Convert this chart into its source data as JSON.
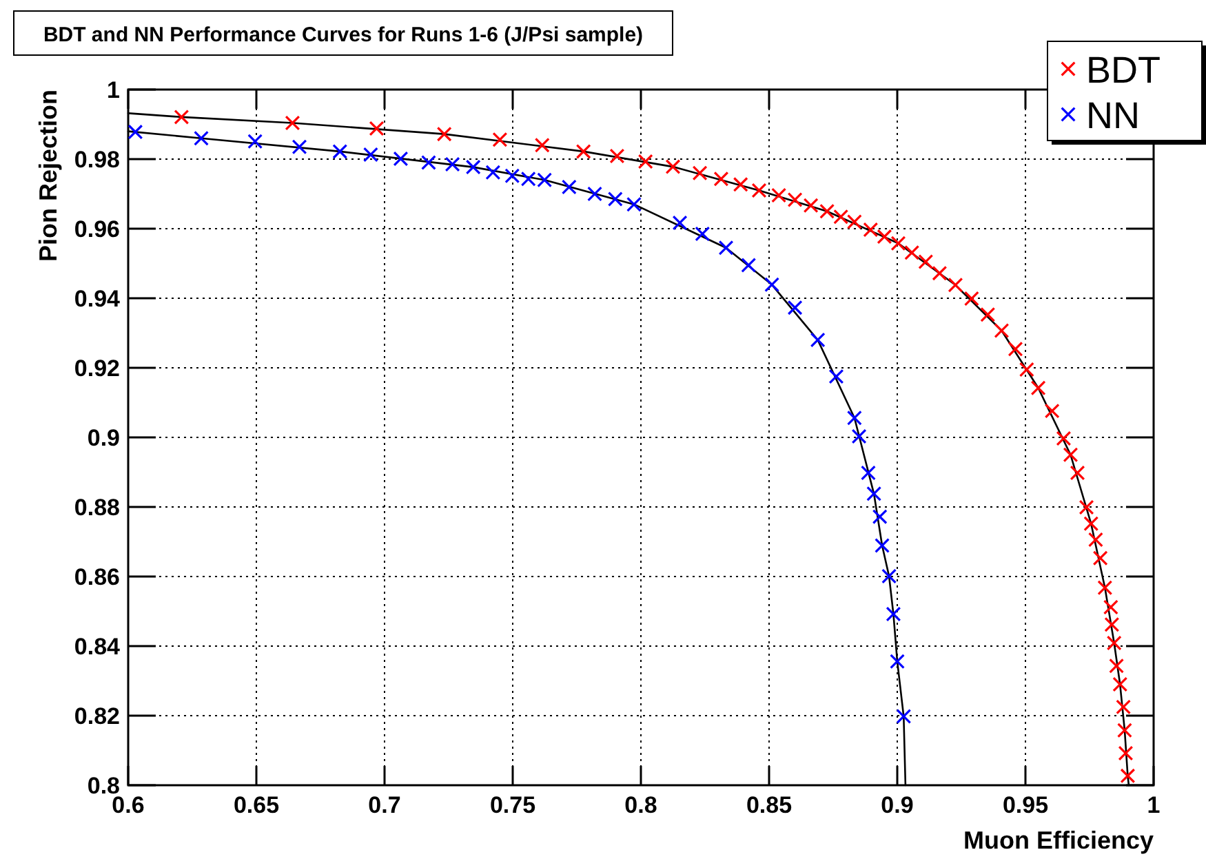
{
  "chart_data": {
    "type": "scatter",
    "title": "BDT and NN Performance Curves for Runs 1-6 (J/Psi sample)",
    "xlabel": "Muon Efficiency",
    "ylabel": "Pion Rejection",
    "xlim": [
      0.6,
      1
    ],
    "xticks": [
      0.6,
      0.65,
      0.7,
      0.75,
      0.8,
      0.85,
      0.9,
      0.95,
      1
    ],
    "ylim": [
      0.8,
      1
    ],
    "yticks": [
      0.8,
      0.82,
      0.84,
      0.86,
      0.88,
      0.9,
      0.92,
      0.94,
      0.96,
      0.98,
      1
    ],
    "grid": true,
    "legend": "top right",
    "marker": "cross",
    "series": [
      {
        "type": "line",
        "marker": "none",
        "color": "#000000",
        "x": [
          0.6,
          0.6208,
          0.6641,
          0.7233,
          0.7776,
          0.8125,
          0.8461,
          0.8726,
          0.9004,
          0.9227,
          0.9407,
          0.955,
          0.9676,
          0.9756,
          0.981,
          0.9846,
          0.9869,
          0.9887,
          0.9899,
          0.9903
        ],
        "values": [
          0.9932,
          0.9921,
          0.9904,
          0.9872,
          0.9822,
          0.9778,
          0.971,
          0.965,
          0.9558,
          0.9438,
          0.9307,
          0.9142,
          0.895,
          0.8752,
          0.8568,
          0.8409,
          0.829,
          0.8158,
          0.8027,
          0.8
        ]
      },
      {
        "type": "line",
        "marker": "none",
        "color": "#000000",
        "x": [
          0.6,
          0.6285,
          0.6826,
          0.7346,
          0.7624,
          0.7973,
          0.8332,
          0.8511,
          0.869,
          0.8833,
          0.8909,
          0.8941,
          0.8968,
          0.8985,
          0.9,
          0.9025,
          0.9032
        ],
        "values": [
          0.988,
          0.986,
          0.9822,
          0.9777,
          0.974,
          0.967,
          0.9545,
          0.9439,
          0.928,
          0.9056,
          0.8838,
          0.8689,
          0.8601,
          0.8492,
          0.8356,
          0.8198,
          0.8
        ]
      },
      {
        "name": "BDT",
        "type": "scatter",
        "color": "#ff0000",
        "x": [
          0.6208,
          0.6641,
          0.6969,
          0.7233,
          0.745,
          0.7615,
          0.7776,
          0.7907,
          0.8018,
          0.8125,
          0.823,
          0.8313,
          0.8389,
          0.8461,
          0.8538,
          0.8601,
          0.8663,
          0.8726,
          0.878,
          0.8833,
          0.8896,
          0.895,
          0.9004,
          0.9057,
          0.9111,
          0.9165,
          0.9227,
          0.929,
          0.9353,
          0.9407,
          0.9461,
          0.9505,
          0.955,
          0.9604,
          0.9649,
          0.9676,
          0.9703,
          0.9738,
          0.9756,
          0.9774,
          0.9792,
          0.981,
          0.9833,
          0.9837,
          0.9846,
          0.9855,
          0.9869,
          0.9882,
          0.9887,
          0.9891,
          0.9899
        ],
        "values": [
          0.9921,
          0.9904,
          0.9888,
          0.9872,
          0.9856,
          0.984,
          0.9822,
          0.9809,
          0.9793,
          0.9778,
          0.976,
          0.9743,
          0.9727,
          0.971,
          0.9696,
          0.9683,
          0.9667,
          0.965,
          0.9634,
          0.962,
          0.9597,
          0.9577,
          0.9558,
          0.9531,
          0.9505,
          0.9472,
          0.9438,
          0.9399,
          0.9353,
          0.9307,
          0.9254,
          0.9195,
          0.9142,
          0.9076,
          0.8997,
          0.895,
          0.8898,
          0.8799,
          0.8752,
          0.8706,
          0.8653,
          0.8568,
          0.8512,
          0.8462,
          0.8409,
          0.8343,
          0.829,
          0.8225,
          0.8158,
          0.8092,
          0.8027
        ]
      },
      {
        "name": "NN",
        "type": "scatter",
        "color": "#0000ff",
        "x": [
          0.6028,
          0.6285,
          0.6495,
          0.6668,
          0.6826,
          0.6946,
          0.7063,
          0.7172,
          0.7265,
          0.7346,
          0.7423,
          0.7498,
          0.7561,
          0.7624,
          0.772,
          0.782,
          0.79,
          0.7973,
          0.8152,
          0.824,
          0.8332,
          0.842,
          0.8511,
          0.8601,
          0.869,
          0.8762,
          0.8833,
          0.8851,
          0.8887,
          0.8909,
          0.8932,
          0.8941,
          0.8968,
          0.8985,
          0.9,
          0.9025
        ],
        "values": [
          0.9878,
          0.986,
          0.9851,
          0.9835,
          0.9822,
          0.9813,
          0.9801,
          0.979,
          0.9785,
          0.9777,
          0.9762,
          0.9752,
          0.9743,
          0.974,
          0.972,
          0.97,
          0.9685,
          0.967,
          0.9617,
          0.9585,
          0.9545,
          0.9495,
          0.9439,
          0.9373,
          0.928,
          0.9175,
          0.9056,
          0.9003,
          0.8898,
          0.8838,
          0.8772,
          0.8689,
          0.8601,
          0.8492,
          0.8356,
          0.8198
        ]
      }
    ]
  }
}
